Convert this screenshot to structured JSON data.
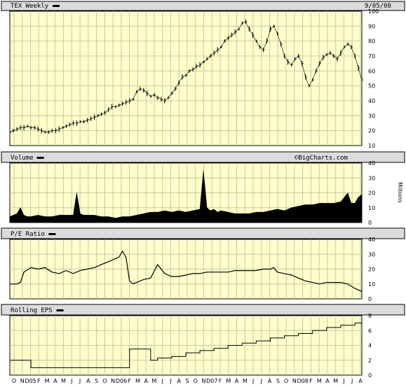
{
  "date": "9/05/08",
  "watermark": "©BigCharts.com",
  "panels": {
    "price": {
      "title": "TEX Weekly"
    },
    "volume": {
      "title": "Volume",
      "unit": "Millions"
    },
    "pe": {
      "title": "P/E Ratio"
    },
    "eps": {
      "title": "Rolling EPS"
    }
  },
  "x_labels": [
    "O",
    "N",
    "D05",
    "F",
    "M",
    "A",
    "M",
    "J",
    "J",
    "A",
    "S",
    "O",
    "N",
    "D06",
    "F",
    "M",
    "A",
    "M",
    "J",
    "J",
    "A",
    "S",
    "O",
    "N",
    "D07",
    "F",
    "M",
    "A",
    "M",
    "J",
    "J",
    "A",
    "S",
    "O",
    "N",
    "D08",
    "F",
    "M",
    "A",
    "M",
    "J",
    "J",
    "A"
  ],
  "colors": {
    "plot_bg": "#ffffcc",
    "grid": "#c8c8a0",
    "header_bg": "#dcdcdc",
    "series": "#000000"
  },
  "chart_data": [
    {
      "type": "line",
      "title": "TEX Weekly",
      "ylim": [
        10,
        100
      ],
      "yticks": [
        10,
        20,
        30,
        40,
        50,
        60,
        70,
        80,
        90,
        100
      ],
      "series": [
        {
          "name": "TEX Weekly",
          "style": "ohlc-bars",
          "x": [
            0,
            2,
            4,
            6,
            8,
            10,
            12,
            14,
            16,
            18,
            20,
            22,
            24,
            26,
            28,
            30,
            32,
            34,
            36,
            38,
            40,
            42,
            44,
            46,
            48,
            50,
            52,
            54,
            56,
            58,
            60,
            62,
            64,
            66,
            68,
            70,
            72,
            74,
            76,
            78,
            80,
            82,
            84,
            86,
            88,
            90,
            92,
            94,
            96,
            98,
            100,
            102,
            104,
            106,
            108,
            110,
            112,
            114,
            116,
            118,
            120,
            122,
            124,
            126,
            128,
            130,
            132,
            134,
            136,
            138,
            140,
            142,
            144,
            146,
            148,
            150,
            152,
            154,
            156,
            158,
            160,
            162,
            164,
            166,
            168,
            170,
            172,
            174,
            176,
            178,
            180,
            182,
            184,
            186,
            188,
            190,
            192,
            194,
            196,
            198,
            200
          ],
          "values": [
            19,
            20,
            21,
            22,
            22,
            23,
            22,
            22,
            21,
            20,
            19,
            19,
            20,
            20,
            21,
            22,
            23,
            24,
            25,
            25,
            26,
            26,
            27,
            28,
            29,
            30,
            31,
            32,
            34,
            36,
            36,
            37,
            38,
            39,
            40,
            41,
            46,
            48,
            47,
            45,
            43,
            44,
            42,
            41,
            40,
            42,
            45,
            48,
            52,
            56,
            57,
            60,
            61,
            63,
            64,
            66,
            68,
            70,
            72,
            74,
            76,
            80,
            82,
            84,
            86,
            88,
            92,
            93,
            88,
            84,
            80,
            76,
            74,
            80,
            88,
            90,
            85,
            78,
            70,
            66,
            64,
            68,
            70,
            65,
            56,
            50,
            54,
            60,
            65,
            69,
            71,
            72,
            70,
            68,
            72,
            76,
            78,
            76,
            70,
            62,
            54
          ]
        }
      ]
    },
    {
      "type": "area",
      "title": "Volume",
      "ylabel": "Millions",
      "ylim": [
        0,
        40
      ],
      "yticks": [
        0,
        10,
        20,
        30,
        40
      ],
      "series": [
        {
          "name": "Volume",
          "x": [
            0,
            4,
            6,
            8,
            10,
            12,
            16,
            20,
            24,
            28,
            32,
            36,
            38,
            40,
            42,
            44,
            48,
            52,
            56,
            60,
            64,
            68,
            72,
            76,
            80,
            84,
            88,
            92,
            96,
            100,
            104,
            108,
            110,
            112,
            114,
            116,
            118,
            120,
            124,
            128,
            132,
            136,
            140,
            144,
            148,
            152,
            156,
            160,
            164,
            168,
            172,
            176,
            180,
            184,
            188,
            190,
            192,
            194,
            196,
            198,
            200
          ],
          "values": [
            4,
            6,
            10,
            5,
            4,
            4,
            5,
            4,
            4,
            5,
            5,
            5,
            20,
            6,
            5,
            5,
            5,
            4,
            4,
            3,
            4,
            4,
            5,
            6,
            7,
            7,
            8,
            7,
            8,
            7,
            8,
            9,
            35,
            10,
            8,
            9,
            7,
            8,
            7,
            6,
            6,
            6,
            7,
            7,
            8,
            9,
            8,
            10,
            11,
            12,
            12,
            13,
            13,
            13,
            14,
            17,
            20,
            13,
            13,
            17,
            19
          ]
        }
      ]
    },
    {
      "type": "line",
      "title": "P/E Ratio",
      "ylim": [
        0,
        40
      ],
      "yticks": [
        0,
        10,
        20,
        30,
        40
      ],
      "series": [
        {
          "name": "P/E Ratio",
          "x": [
            0,
            4,
            6,
            8,
            12,
            16,
            20,
            24,
            28,
            32,
            36,
            40,
            44,
            48,
            52,
            56,
            60,
            62,
            64,
            66,
            68,
            70,
            72,
            74,
            76,
            80,
            84,
            88,
            92,
            96,
            100,
            104,
            108,
            112,
            116,
            120,
            124,
            128,
            132,
            136,
            140,
            144,
            148,
            150,
            152,
            156,
            160,
            164,
            168,
            172,
            176,
            180,
            184,
            188,
            192,
            196,
            200
          ],
          "values": [
            10,
            10,
            11,
            18,
            21,
            20,
            21,
            18,
            17,
            19,
            17,
            19,
            20,
            21,
            23,
            25,
            27,
            28,
            32,
            28,
            12,
            10,
            11,
            12,
            13,
            14,
            23,
            17,
            15,
            15,
            16,
            17,
            17,
            18,
            18,
            18,
            18,
            19,
            19,
            19,
            19,
            20,
            20,
            21,
            18,
            17,
            16,
            14,
            12,
            11,
            10,
            11,
            11,
            11,
            10,
            7,
            5
          ]
        }
      ]
    },
    {
      "type": "line",
      "title": "Rolling EPS",
      "ylim": [
        0,
        8
      ],
      "yticks": [
        0,
        2,
        4,
        6,
        8
      ],
      "series": [
        {
          "name": "Rolling EPS",
          "style": "step",
          "x": [
            0,
            8,
            12,
            16,
            20,
            24,
            28,
            32,
            36,
            40,
            44,
            48,
            52,
            56,
            60,
            64,
            68,
            72,
            76,
            80,
            84,
            88,
            92,
            96,
            100,
            104,
            108,
            112,
            116,
            120,
            124,
            128,
            132,
            136,
            140,
            144,
            148,
            152,
            156,
            160,
            164,
            168,
            172,
            176,
            180,
            184,
            188,
            192,
            196,
            200
          ],
          "values": [
            2,
            2,
            1,
            1,
            1,
            1,
            1,
            1,
            1,
            1,
            1,
            1,
            1,
            1,
            1,
            1,
            3.5,
            3.5,
            3.5,
            2,
            2.3,
            2.3,
            2.5,
            2.5,
            3,
            3,
            3.3,
            3.3,
            3.6,
            3.6,
            4,
            4,
            4.3,
            4.3,
            4.6,
            4.6,
            5,
            5,
            5.3,
            5.3,
            5.6,
            5.6,
            6,
            6,
            6.4,
            6.4,
            6.7,
            6.7,
            7,
            7
          ]
        }
      ]
    }
  ]
}
